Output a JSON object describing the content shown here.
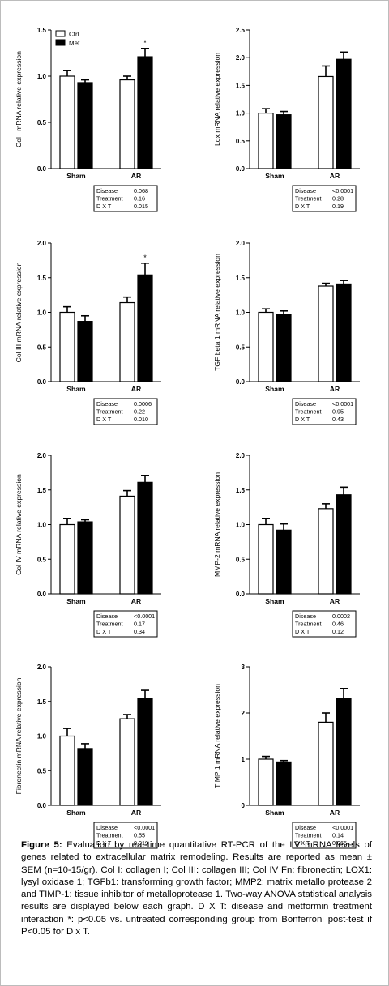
{
  "legend": {
    "ctrl": "Ctrl",
    "met": "Met"
  },
  "caption": {
    "label": "Figure 5:",
    "text": "Evaluation by real-time quantitative RT-PCR of the LV mRNA levels of genes related to extracellular matrix remodeling. Results are reported as mean ± SEM (n=10-15/gr). Col I: collagen I; Col III: collagen III; Col IV Fn: fibronectin; LOX1: lysyl oxidase 1; TGFb1: transforming growth factor; MMP2: matrix metallo protease 2 and TIMP-1: tissue inhibitor of metalloprotease 1. Two-way ANOVA statistical analysis results are displayed below each graph. D X T: disease and metformin treatment interaction *: p<0.05 vs. untreated corresponding group from Bonferroni post-test if P<0.05 for D x T."
  },
  "colors": {
    "ctrl": "#ffffff",
    "met": "#000000",
    "axis": "#000000"
  },
  "chart_data": [
    {
      "type": "bar",
      "ylabel": "Col I mRNA relative expression",
      "categories": [
        "Sham",
        "AR"
      ],
      "ylim": [
        0,
        1.5
      ],
      "yticks": [
        "0.0",
        "0.5",
        "1.0",
        "1.5"
      ],
      "ytick_values": [
        0,
        0.5,
        1.0,
        1.5
      ],
      "series": [
        {
          "name": "Ctrl",
          "values": [
            1.0,
            0.96
          ],
          "err": [
            0.06,
            0.04
          ]
        },
        {
          "name": "Met",
          "values": [
            0.93,
            1.21
          ],
          "err": [
            0.03,
            0.09
          ]
        }
      ],
      "annotations": [
        {
          "category": "AR",
          "series": "Met",
          "text": "*"
        }
      ],
      "stats": [
        {
          "label": "Disease",
          "value": "0.068"
        },
        {
          "label": "Treatment",
          "value": "0.16"
        },
        {
          "label": "D X T",
          "value": "0.015"
        }
      ],
      "show_legend": true
    },
    {
      "type": "bar",
      "ylabel": "Lox mRNA relative expression",
      "categories": [
        "Sham",
        "AR"
      ],
      "ylim": [
        0,
        2.5
      ],
      "yticks": [
        "0.0",
        "0.5",
        "1.0",
        "1.5",
        "2.0",
        "2.5"
      ],
      "ytick_values": [
        0,
        0.5,
        1.0,
        1.5,
        2.0,
        2.5
      ],
      "series": [
        {
          "name": "Ctrl",
          "values": [
            1.0,
            1.66
          ],
          "err": [
            0.08,
            0.19
          ]
        },
        {
          "name": "Met",
          "values": [
            0.97,
            1.97
          ],
          "err": [
            0.06,
            0.13
          ]
        }
      ],
      "annotations": [],
      "stats": [
        {
          "label": "Disease",
          "value": "<0.0001"
        },
        {
          "label": "Treatment",
          "value": "0.28"
        },
        {
          "label": "D X T",
          "value": "0.19"
        }
      ]
    },
    {
      "type": "bar",
      "ylabel": "Col III mRNA relative expression",
      "categories": [
        "Sham",
        "AR"
      ],
      "ylim": [
        0,
        2.0
      ],
      "yticks": [
        "0.0",
        "0.5",
        "1.0",
        "1.5",
        "2.0"
      ],
      "ytick_values": [
        0,
        0.5,
        1.0,
        1.5,
        2.0
      ],
      "series": [
        {
          "name": "Ctrl",
          "values": [
            1.0,
            1.14
          ],
          "err": [
            0.08,
            0.08
          ]
        },
        {
          "name": "Met",
          "values": [
            0.87,
            1.54
          ],
          "err": [
            0.08,
            0.17
          ]
        }
      ],
      "annotations": [
        {
          "category": "AR",
          "series": "Met",
          "text": "*"
        }
      ],
      "stats": [
        {
          "label": "Disease",
          "value": "0.0006"
        },
        {
          "label": "Treatment",
          "value": "0.22"
        },
        {
          "label": "D X T",
          "value": "0.010"
        }
      ]
    },
    {
      "type": "bar",
      "ylabel": "TGF beta 1 mRNA relative expression",
      "categories": [
        "Sham",
        "AR"
      ],
      "ylim": [
        0,
        2.0
      ],
      "yticks": [
        "0.0",
        "0.5",
        "1.0",
        "1.5",
        "2.0"
      ],
      "ytick_values": [
        0,
        0.5,
        1.0,
        1.5,
        2.0
      ],
      "series": [
        {
          "name": "Ctrl",
          "values": [
            1.0,
            1.38
          ],
          "err": [
            0.05,
            0.04
          ]
        },
        {
          "name": "Met",
          "values": [
            0.97,
            1.41
          ],
          "err": [
            0.05,
            0.05
          ]
        }
      ],
      "annotations": [],
      "stats": [
        {
          "label": "Disease",
          "value": "<0.0001"
        },
        {
          "label": "Treatment",
          "value": "0.95"
        },
        {
          "label": "D X T",
          "value": "0.43"
        }
      ]
    },
    {
      "type": "bar",
      "ylabel": "Col IV mRNA relative expression",
      "categories": [
        "Sham",
        "AR"
      ],
      "ylim": [
        0,
        2.0
      ],
      "yticks": [
        "0.0",
        "0.5",
        "1.0",
        "1.5",
        "2.0"
      ],
      "ytick_values": [
        0,
        0.5,
        1.0,
        1.5,
        2.0
      ],
      "series": [
        {
          "name": "Ctrl",
          "values": [
            1.0,
            1.41
          ],
          "err": [
            0.09,
            0.08
          ]
        },
        {
          "name": "Met",
          "values": [
            1.04,
            1.61
          ],
          "err": [
            0.03,
            0.1
          ]
        }
      ],
      "annotations": [],
      "stats": [
        {
          "label": "Disease",
          "value": "<0.0001"
        },
        {
          "label": "Treatment",
          "value": "0.17"
        },
        {
          "label": "D X T",
          "value": "0.34"
        }
      ]
    },
    {
      "type": "bar",
      "ylabel": "MMP-2 mRNA relative expression",
      "categories": [
        "Sham",
        "AR"
      ],
      "ylim": [
        0,
        2.0
      ],
      "yticks": [
        "0.0",
        "0.5",
        "1.0",
        "1.5",
        "2.0"
      ],
      "ytick_values": [
        0,
        0.5,
        1.0,
        1.5,
        2.0
      ],
      "series": [
        {
          "name": "Ctrl",
          "values": [
            1.0,
            1.23
          ],
          "err": [
            0.09,
            0.07
          ]
        },
        {
          "name": "Met",
          "values": [
            0.92,
            1.43
          ],
          "err": [
            0.09,
            0.11
          ]
        }
      ],
      "annotations": [],
      "stats": [
        {
          "label": "Disease",
          "value": "0.0002"
        },
        {
          "label": "Treatment",
          "value": "0.46"
        },
        {
          "label": "D X T",
          "value": "0.12"
        }
      ]
    },
    {
      "type": "bar",
      "ylabel": "Fibronectin mRNA relative expression",
      "categories": [
        "Sham",
        "AR"
      ],
      "ylim": [
        0,
        2.0
      ],
      "yticks": [
        "0.0",
        "0.5",
        "1.0",
        "1.5",
        "2.0"
      ],
      "ytick_values": [
        0,
        0.5,
        1.0,
        1.5,
        2.0
      ],
      "series": [
        {
          "name": "Ctrl",
          "values": [
            1.0,
            1.25
          ],
          "err": [
            0.11,
            0.06
          ]
        },
        {
          "name": "Met",
          "values": [
            0.82,
            1.54
          ],
          "err": [
            0.07,
            0.12
          ]
        }
      ],
      "annotations": [],
      "stats": [
        {
          "label": "Disease",
          "value": "<0.0001"
        },
        {
          "label": "Treatment",
          "value": "0.55"
        },
        {
          "label": "D X T",
          "value": "0.019"
        }
      ]
    },
    {
      "type": "bar",
      "ylabel": "TIMP 1 mRNA relative expression",
      "categories": [
        "Sham",
        "AR"
      ],
      "ylim": [
        0,
        3
      ],
      "yticks": [
        "0",
        "1",
        "2",
        "3"
      ],
      "ytick_values": [
        0,
        1,
        2,
        3
      ],
      "series": [
        {
          "name": "Ctrl",
          "values": [
            1.0,
            1.8
          ],
          "err": [
            0.06,
            0.2
          ]
        },
        {
          "name": "Met",
          "values": [
            0.94,
            2.32
          ],
          "err": [
            0.03,
            0.21
          ]
        }
      ],
      "annotations": [],
      "stats": [
        {
          "label": "Disease",
          "value": "<0.0001"
        },
        {
          "label": "Treatment",
          "value": "0.14"
        },
        {
          "label": "D X T",
          "value": "0.065"
        }
      ]
    }
  ]
}
